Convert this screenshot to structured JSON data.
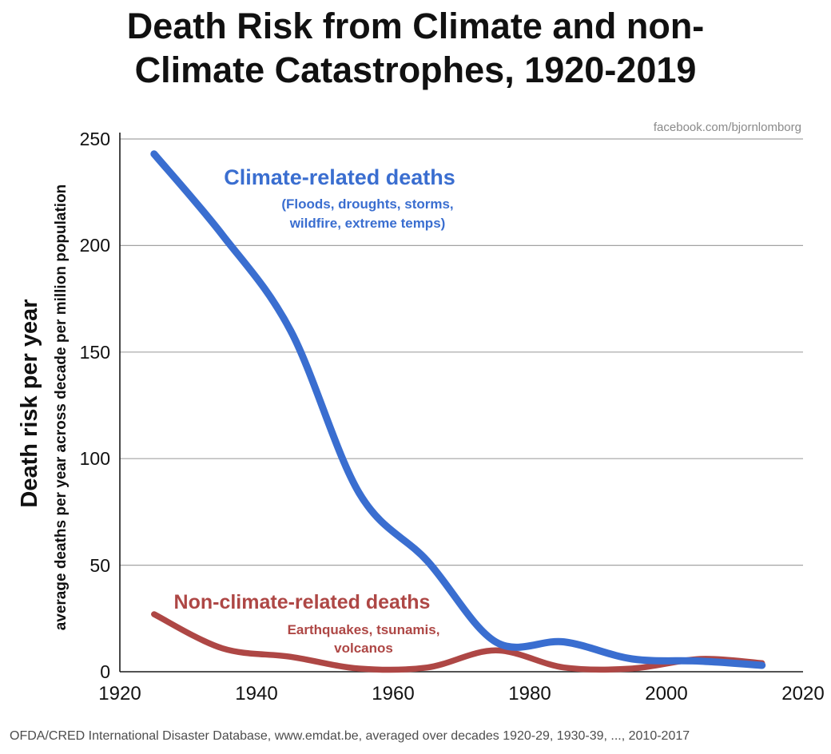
{
  "title_lines": [
    "Death Risk from Climate and non-",
    "Climate Catastrophes, 1920-2019"
  ],
  "watermark": "facebook.com/bjornlomborg",
  "y_axis": {
    "label_main": "Death risk per year",
    "label_sub": "average deaths per year across decade per million population"
  },
  "annotations": {
    "climate": {
      "title": "Climate-related deaths",
      "sub1": "(Floods, droughts, storms,",
      "sub2": "wildfire, extreme temps)"
    },
    "nonclimate": {
      "title": "Non-climate-related deaths",
      "sub1": "Earthquakes, tsunamis,",
      "sub2": "volcanos"
    }
  },
  "footer": "OFDA/CRED International Disaster Database, www.emdat.be, averaged over decades 1920-29, 1930-39, ..., 2010-2017",
  "colors": {
    "climate_line": "#3a6ed0",
    "nonclimate_line": "#ae4745",
    "gridline": "#a3a3a3",
    "axis": "#1a1a1a"
  },
  "chart_data": {
    "type": "line",
    "title": "Death Risk from Climate and non-Climate Catastrophes, 1920-2019",
    "ylabel": "Death risk per year (average deaths per year across decade per million population)",
    "xlabel": "",
    "x": [
      1925,
      1935,
      1945,
      1955,
      1965,
      1975,
      1985,
      1995,
      2005,
      2014
    ],
    "series": [
      {
        "name": "Climate-related deaths",
        "color": "#3a6ed0",
        "width": 9,
        "values": [
          243,
          205,
          160,
          84,
          52,
          14,
          14,
          6,
          5,
          3
        ]
      },
      {
        "name": "Non-climate-related deaths",
        "color": "#ae4745",
        "width": 7.5,
        "values": [
          27,
          11,
          7,
          1.5,
          2,
          10,
          2,
          1.5,
          6,
          4
        ]
      }
    ],
    "xlim": [
      1920,
      2020
    ],
    "ylim": [
      0,
      250
    ],
    "grid": true,
    "legend_position": "inline-annotations",
    "xticks": [
      "1920",
      "1940",
      "1960",
      "1980",
      "2000",
      "2020"
    ],
    "yticks": [
      "250",
      "200",
      "150",
      "100",
      "50",
      "0"
    ]
  }
}
